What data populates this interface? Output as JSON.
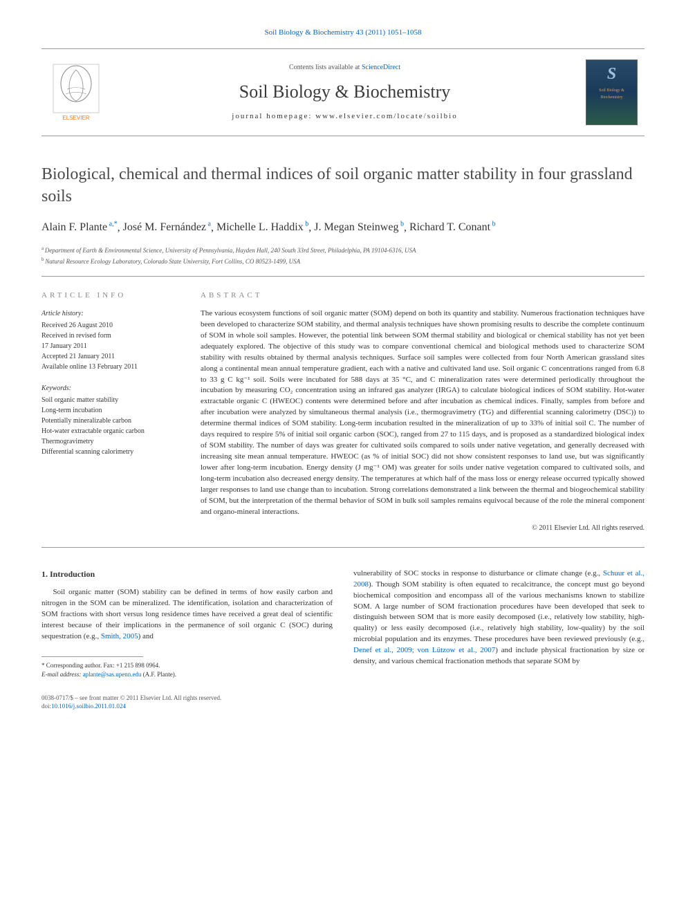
{
  "citation": {
    "text": "Soil Biology & Biochemistry 43 (2011) 1051–1058",
    "link_color": "#0066cc"
  },
  "header": {
    "contents_text": "Contents lists available at ",
    "contents_link": "ScienceDirect",
    "journal_name": "Soil Biology & Biochemistry",
    "homepage_label": "journal homepage: ",
    "homepage_url": "www.elsevier.com/locate/soilbio",
    "cover_letter": "S",
    "cover_text1": "Soil Biology &",
    "cover_text2": "Biochemistry"
  },
  "title": "Biological, chemical and thermal indices of soil organic matter stability in four grassland soils",
  "authors_html": "Alain F. Plante|a,*|, José M. Fernández|a|, Michelle L. Haddix|b|, J. Megan Steinweg|b|, Richard T. Conant|b|",
  "authors": [
    {
      "name": "Alain F. Plante",
      "sup": "a,*"
    },
    {
      "name": "José M. Fernández",
      "sup": "a"
    },
    {
      "name": "Michelle L. Haddix",
      "sup": "b"
    },
    {
      "name": "J. Megan Steinweg",
      "sup": "b"
    },
    {
      "name": "Richard T. Conant",
      "sup": "b"
    }
  ],
  "affiliations": [
    {
      "sup": "a",
      "text": "Department of Earth & Environmental Science, University of Pennsylvania, Hayden Hall, 240 South 33rd Street, Philadelphia, PA 19104-6316, USA"
    },
    {
      "sup": "b",
      "text": "Natural Resource Ecology Laboratory, Colorado State University, Fort Collins, CO 80523-1499, USA"
    }
  ],
  "article_info": {
    "heading": "ARTICLE INFO",
    "history_label": "Article history:",
    "history": [
      "Received 26 August 2010",
      "Received in revised form",
      "17 January 2011",
      "Accepted 21 January 2011",
      "Available online 13 February 2011"
    ],
    "keywords_label": "Keywords:",
    "keywords": [
      "Soil organic matter stability",
      "Long-term incubation",
      "Potentially mineralizable carbon",
      "Hot-water extractable organic carbon",
      "Thermogravimetry",
      "Differential scanning calorimetry"
    ]
  },
  "abstract": {
    "heading": "ABSTRACT",
    "text": "The various ecosystem functions of soil organic matter (SOM) depend on both its quantity and stability. Numerous fractionation techniques have been developed to characterize SOM stability, and thermal analysis techniques have shown promising results to describe the complete continuum of SOM in whole soil samples. However, the potential link between SOM thermal stability and biological or chemical stability has not yet been adequately explored. The objective of this study was to compare conventional chemical and biological methods used to characterize SOM stability with results obtained by thermal analysis techniques. Surface soil samples were collected from four North American grassland sites along a continental mean annual temperature gradient, each with a native and cultivated land use. Soil organic C concentrations ranged from 6.8 to 33 g C kg⁻¹ soil. Soils were incubated for 588 days at 35 °C, and C mineralization rates were determined periodically throughout the incubation by measuring CO₂ concentration using an infrared gas analyzer (IRGA) to calculate biological indices of SOM stability. Hot-water extractable organic C (HWEOC) contents were determined before and after incubation as chemical indices. Finally, samples from before and after incubation were analyzed by simultaneous thermal analysis (i.e., thermogravimetry (TG) and differential scanning calorimetry (DSC)) to determine thermal indices of SOM stability. Long-term incubation resulted in the mineralization of up to 33% of initial soil C. The number of days required to respire 5% of initial soil organic carbon (SOC), ranged from 27 to 115 days, and is proposed as a standardized biological index of SOM stability. The number of days was greater for cultivated soils compared to soils under native vegetation, and generally decreased with increasing site mean annual temperature. HWEOC (as % of initial SOC) did not show consistent responses to land use, but was significantly lower after long-term incubation. Energy density (J mg⁻¹ OM) was greater for soils under native vegetation compared to cultivated soils, and long-term incubation also decreased energy density. The temperatures at which half of the mass loss or energy release occurred typically showed larger responses to land use change than to incubation. Strong correlations demonstrated a link between the thermal and biogeochemical stability of SOM, but the interpretation of the thermal behavior of SOM in bulk soil samples remains equivocal because of the role the mineral component and organo-mineral interactions.",
    "copyright": "© 2011 Elsevier Ltd. All rights reserved."
  },
  "intro": {
    "heading": "1. Introduction",
    "col1": "Soil organic matter (SOM) stability can be defined in terms of how easily carbon and nitrogen in the SOM can be mineralized. The identification, isolation and characterization of SOM fractions with short versus long residence times have received a great deal of scientific interest because of their implications in the permanence of soil organic C (SOC) during sequestration (e.g., |Smith, 2005|) and",
    "col2_p1_pre": "vulnerability of SOC stocks in response to disturbance or climate change (e.g., ",
    "col2_p1_link1": "Schuur et al., 2008",
    "col2_p1_mid": "). Though SOM stability is often equated to recalcitrance, the concept must go beyond biochemical composition and encompass all of the various mechanisms known to stabilize SOM. A large number of SOM fractionation procedures have been developed that seek to distinguish between SOM that is more easily decomposed (i.e., relatively low stability, high-quality) or less easily decomposed (i.e., relatively high stability, low-quality) by the soil microbial population and its enzymes. These procedures have been reviewed previously (e.g., ",
    "col2_p1_link2": "Denef et al., 2009; von Lützow et al., 2007",
    "col2_p1_end": ") and include physical fractionation by size or density, and various chemical fractionation methods that separate SOM by"
  },
  "footnotes": {
    "corr_label": "* Corresponding author. Fax: +1 215 898 0964.",
    "email_label": "E-mail address: ",
    "email": "aplante@sas.upenn.edu",
    "email_suffix": " (A.F. Plante)."
  },
  "bottom": {
    "line1": "0038-0717/$ – see front matter © 2011 Elsevier Ltd. All rights reserved.",
    "doi_label": "doi:",
    "doi": "10.1016/j.soilbio.2011.01.024"
  },
  "colors": {
    "link": "#0066cc",
    "text": "#333333",
    "heading_gray": "#888888",
    "rule": "#999999",
    "background": "#ffffff"
  },
  "fonts": {
    "body_family": "Georgia, 'Times New Roman', serif",
    "title_size_pt": 18,
    "journal_size_pt": 20,
    "body_size_pt": 8,
    "abstract_size_pt": 8,
    "info_size_pt": 7
  }
}
